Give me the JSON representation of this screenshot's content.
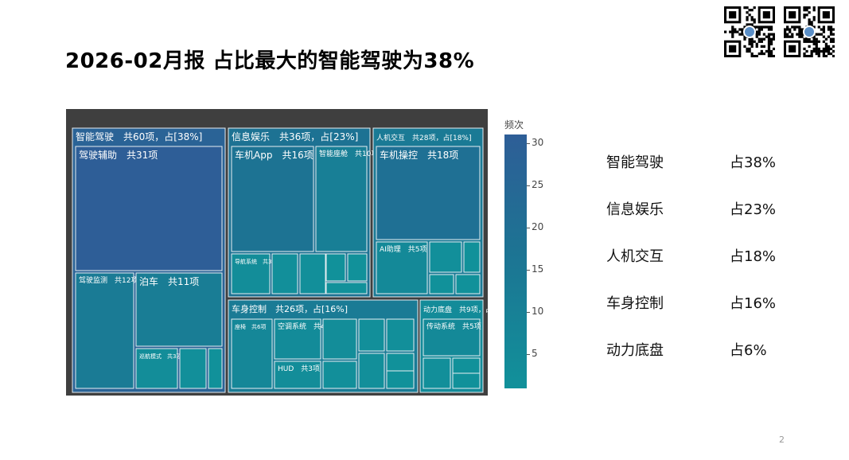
{
  "title": "2026-02月报 占比最大的智能驾驶为38%",
  "page_number": "2",
  "summary": [
    {
      "name": "智能驾驶",
      "pct": "占38%"
    },
    {
      "name": "信息娱乐",
      "pct": "占23%"
    },
    {
      "name": "人机交互",
      "pct": "占18%"
    },
    {
      "name": "车身控制",
      "pct": "占16%"
    },
    {
      "name": "动力底盘",
      "pct": "占6%"
    }
  ],
  "chart_data": {
    "type": "treemap",
    "legend_title": "频次",
    "legend_range": [
      1,
      31
    ],
    "legend_ticks": [
      5,
      10,
      15,
      20,
      25,
      30
    ],
    "colors": {
      "high": "#2e5e97",
      "mid": "#1d7393",
      "low": "#11919a",
      "border": "#e6eef2",
      "background": "#3f3f3f"
    },
    "categories": [
      {
        "label": "智能驾驶　共60项，占[38%]",
        "count": 60,
        "share": 38,
        "children": [
          {
            "label": "驾驶辅助　共31项",
            "count": 31
          },
          {
            "label": "驾驶监测　共12项",
            "count": 12
          },
          {
            "label": "泊车　共11项",
            "count": 11
          },
          {
            "label": "巡航模式　共3项",
            "count": 3
          },
          {
            "label": "",
            "count": 2
          },
          {
            "label": "",
            "count": 1
          }
        ]
      },
      {
        "label": "信息娱乐　共36项，占[23%]",
        "count": 36,
        "share": 23,
        "children": [
          {
            "label": "车机App　共16项",
            "count": 16
          },
          {
            "label": "智能座舱　共10项",
            "count": 10
          },
          {
            "label": "导航系统　共3项",
            "count": 3
          },
          {
            "label": "",
            "count": 2
          },
          {
            "label": "",
            "count": 2
          },
          {
            "label": "",
            "count": 1
          },
          {
            "label": "",
            "count": 1
          },
          {
            "label": "",
            "count": 1
          }
        ]
      },
      {
        "label": "人机交互　共28项，占[18%]",
        "count": 28,
        "share": 18,
        "children": [
          {
            "label": "车机操控　共18项",
            "count": 18
          },
          {
            "label": "AI助理　共5项",
            "count": 5
          },
          {
            "label": "",
            "count": 2
          },
          {
            "label": "",
            "count": 1
          },
          {
            "label": "",
            "count": 1
          },
          {
            "label": "",
            "count": 1
          }
        ]
      },
      {
        "label": "车身控制　共26项，占[16%]",
        "count": 26,
        "share": 16,
        "children": [
          {
            "label": "座椅　共6项",
            "count": 6
          },
          {
            "label": "空调系统　共4项",
            "count": 4
          },
          {
            "label": "HUD　共3项",
            "count": 3
          },
          {
            "label": "",
            "count": 3
          },
          {
            "label": "",
            "count": 2
          },
          {
            "label": "",
            "count": 2
          },
          {
            "label": "",
            "count": 2
          },
          {
            "label": "",
            "count": 2
          },
          {
            "label": "",
            "count": 1
          },
          {
            "label": "",
            "count": 1
          }
        ]
      },
      {
        "label": "动力底盘　共9项，占[6%]",
        "count": 9,
        "share": 6,
        "children": [
          {
            "label": "传动系统　共5项",
            "count": 5
          },
          {
            "label": "",
            "count": 2
          },
          {
            "label": "",
            "count": 1
          },
          {
            "label": "",
            "count": 1
          }
        ]
      }
    ]
  }
}
